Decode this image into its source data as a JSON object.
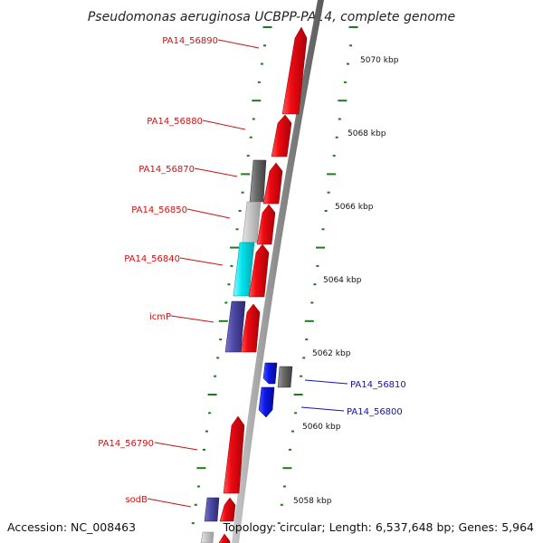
{
  "title": "Pseudomonas aeruginosa UCBPP-PA14, complete genome",
  "footer": {
    "accession": "Accession: NC_008463",
    "summary": "Topology: circular; Length: 6,537,648 bp; Genes: 5,964"
  },
  "colors": {
    "backbone": "#8c8c8c",
    "ticks": "#1f7a1f",
    "red_gene": "#e8000b",
    "blue_gene": "#0a17e8",
    "cyan_gene": "#00e5ef",
    "purple_gene": "#4f4aa6",
    "gray_gene": "#6a6a6a",
    "light_gene": "#c8c8c8",
    "left_label": "#cc1111",
    "right_label": "#1111bb"
  },
  "scale_labels": [
    {
      "text": "5070 kbp"
    },
    {
      "text": "5068 kbp"
    },
    {
      "text": "5066 kbp"
    },
    {
      "text": "5064 kbp"
    },
    {
      "text": "5062 kbp"
    },
    {
      "text": "5060 kbp"
    },
    {
      "text": "5058 kbp"
    }
  ],
  "left_labels": [
    {
      "text": "PA14_56890"
    },
    {
      "text": "PA14_56880"
    },
    {
      "text": "PA14_56870"
    },
    {
      "text": "PA14_56850"
    },
    {
      "text": "PA14_56840"
    },
    {
      "text": "icmP"
    },
    {
      "text": "PA14_56790"
    },
    {
      "text": "sodB"
    }
  ],
  "right_labels": [
    {
      "text": "PA14_56810"
    },
    {
      "text": "PA14_56800"
    }
  ]
}
